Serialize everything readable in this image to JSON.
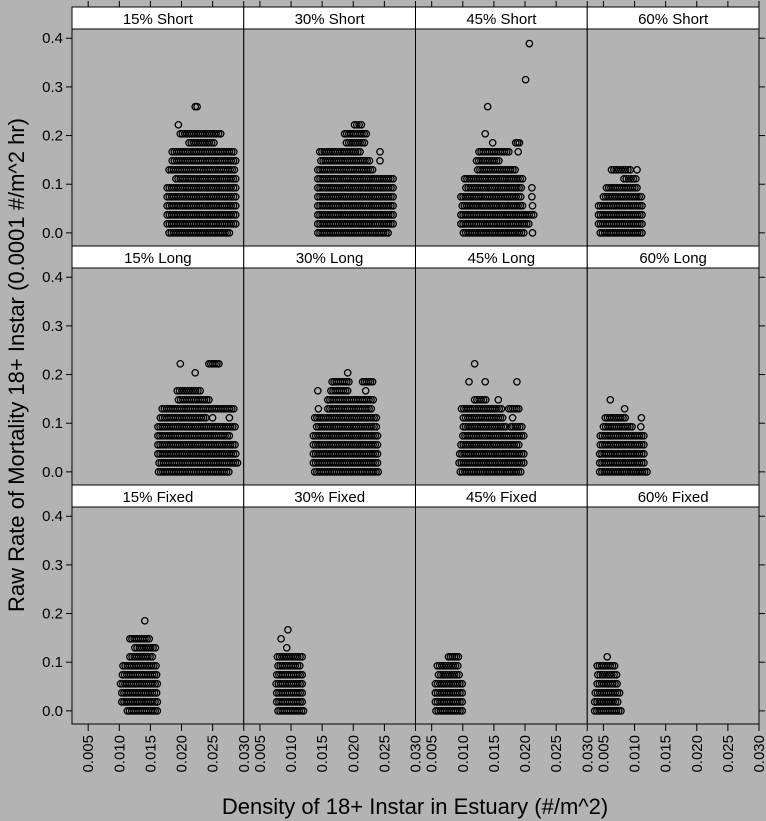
{
  "chart_data": {
    "type": "scatter",
    "layout": "lattice 4 columns x 3 rows",
    "xlabel": "Density of 18+ Instar in Estuary (#/m^2)",
    "ylabel": "Raw Rate of Mortality 18+ Instar (0.0001 #/m^2 hr)",
    "xlim": [
      0.0024,
      0.03
    ],
    "ylim": [
      -0.027,
      0.419
    ],
    "xticks": [
      "0.005",
      "0.010",
      "0.015",
      "0.020",
      "0.025",
      "0.030"
    ],
    "xtick_values": [
      0.005,
      0.01,
      0.015,
      0.02,
      0.025,
      0.03
    ],
    "yticks": [
      "0.0",
      "0.1",
      "0.2",
      "0.3",
      "0.4"
    ],
    "ytick_values": [
      0,
      0.1,
      0.2,
      0.3,
      0.4
    ],
    "grid": false,
    "background_color": "#b3b3b3",
    "strip_color": "#ffffff",
    "marker": "open circle",
    "y_step": 0.01852,
    "point_note": "each segment [y, x_min, x_max] is a run of overlapping points at that y",
    "panels": [
      {
        "label": "15% Short",
        "segments": [
          [
            0,
            0.018,
            0.0277
          ],
          [
            0.0185,
            0.0177,
            0.0287
          ],
          [
            0.037,
            0.0177,
            0.0287
          ],
          [
            0.0556,
            0.0177,
            0.0287
          ],
          [
            0.0741,
            0.0177,
            0.0287
          ],
          [
            0.0926,
            0.0177,
            0.0287
          ],
          [
            0.1111,
            0.0191,
            0.0287
          ],
          [
            0.1296,
            0.018,
            0.0285
          ],
          [
            0.1481,
            0.0185,
            0.0287
          ],
          [
            0.1667,
            0.0185,
            0.0284
          ],
          [
            0.1852,
            0.0212,
            0.0252
          ],
          [
            0.2037,
            0.0198,
            0.0263
          ],
          [
            0.2222,
            0.0195,
            0.0195
          ],
          [
            0.2593,
            0.0222,
            0.0225
          ]
        ]
      },
      {
        "label": "30% Short",
        "segments": [
          [
            0,
            0.0143,
            0.0256
          ],
          [
            0.0185,
            0.0143,
            0.0264
          ],
          [
            0.037,
            0.0143,
            0.0264
          ],
          [
            0.0556,
            0.0143,
            0.0264
          ],
          [
            0.0741,
            0.0143,
            0.0264
          ],
          [
            0.0926,
            0.0143,
            0.0264
          ],
          [
            0.1111,
            0.0143,
            0.0264
          ],
          [
            0.1296,
            0.0143,
            0.0231
          ],
          [
            0.1481,
            0.0148,
            0.0226
          ],
          [
            0.1481,
            0.0243,
            0.0243
          ],
          [
            0.1667,
            0.0146,
            0.0211
          ],
          [
            0.1667,
            0.0243,
            0.0243
          ],
          [
            0.1852,
            0.0189,
            0.0218
          ],
          [
            0.2037,
            0.0186,
            0.0221
          ],
          [
            0.2222,
            0.0202,
            0.0213
          ]
        ]
      },
      {
        "label": "45% Short",
        "segments": [
          [
            0,
            0.0101,
            0.0198
          ],
          [
            0,
            0.0212,
            0.0212
          ],
          [
            0.0185,
            0.0097,
            0.0206
          ],
          [
            0.037,
            0.0097,
            0.0214
          ],
          [
            0.0556,
            0.0099,
            0.0196
          ],
          [
            0.0556,
            0.0212,
            0.0212
          ],
          [
            0.0741,
            0.0097,
            0.0193
          ],
          [
            0.0741,
            0.0211,
            0.0211
          ],
          [
            0.0926,
            0.0105,
            0.0194
          ],
          [
            0.0926,
            0.0211,
            0.0211
          ],
          [
            0.1111,
            0.0103,
            0.0196
          ],
          [
            0.1296,
            0.0124,
            0.0184
          ],
          [
            0.1481,
            0.0122,
            0.0158
          ],
          [
            0.1667,
            0.0126,
            0.0174
          ],
          [
            0.1667,
            0.0189,
            0.0189
          ],
          [
            0.1852,
            0.0148,
            0.0148
          ],
          [
            0.1852,
            0.0185,
            0.0191
          ],
          [
            0.2037,
            0.0136,
            0.0136
          ],
          [
            0.2593,
            0.014,
            0.014
          ],
          [
            0.3148,
            0.0201,
            0.0201
          ],
          [
            0.3889,
            0.0207,
            0.0207
          ]
        ]
      },
      {
        "label": "60% Short",
        "segments": [
          [
            0,
            0.0045,
            0.0112
          ],
          [
            0.0185,
            0.0042,
            0.0112
          ],
          [
            0.037,
            0.0042,
            0.0112
          ],
          [
            0.0556,
            0.0042,
            0.0112
          ],
          [
            0.0741,
            0.005,
            0.0111
          ],
          [
            0.0926,
            0.0055,
            0.0104
          ],
          [
            0.1111,
            0.0083,
            0.0102
          ],
          [
            0.1296,
            0.0063,
            0.0093
          ],
          [
            0.1296,
            0.0104,
            0.0104
          ]
        ]
      },
      {
        "label": "15% Long",
        "segments": [
          [
            0,
            0.0163,
            0.0276
          ],
          [
            0.0185,
            0.0164,
            0.029
          ],
          [
            0.037,
            0.0162,
            0.0287
          ],
          [
            0.0556,
            0.0162,
            0.0286
          ],
          [
            0.0741,
            0.0162,
            0.0277
          ],
          [
            0.0926,
            0.0162,
            0.0286
          ],
          [
            0.1111,
            0.0166,
            0.0239
          ],
          [
            0.1111,
            0.025,
            0.025
          ],
          [
            0.1111,
            0.0277,
            0.0277
          ],
          [
            0.1296,
            0.0169,
            0.0284
          ],
          [
            0.1481,
            0.0195,
            0.0244
          ],
          [
            0.1667,
            0.0193,
            0.023
          ],
          [
            0.2037,
            0.0222,
            0.0222
          ],
          [
            0.2222,
            0.0198,
            0.0198
          ],
          [
            0.2222,
            0.0244,
            0.026
          ]
        ]
      },
      {
        "label": "30% Long",
        "segments": [
          [
            0,
            0.0138,
            0.024
          ],
          [
            0.0185,
            0.0136,
            0.0239
          ],
          [
            0.037,
            0.0136,
            0.0239
          ],
          [
            0.0556,
            0.0136,
            0.0239
          ],
          [
            0.0741,
            0.0136,
            0.0239
          ],
          [
            0.0926,
            0.0141,
            0.0237
          ],
          [
            0.1111,
            0.0138,
            0.0237
          ],
          [
            0.1296,
            0.0144,
            0.0144
          ],
          [
            0.1296,
            0.0159,
            0.0229
          ],
          [
            0.1481,
            0.0159,
            0.0232
          ],
          [
            0.1667,
            0.0143,
            0.0143
          ],
          [
            0.1667,
            0.0164,
            0.0191
          ],
          [
            0.1667,
            0.022,
            0.022
          ],
          [
            0.1852,
            0.0166,
            0.0193
          ],
          [
            0.1852,
            0.0215,
            0.0231
          ],
          [
            0.2037,
            0.0191,
            0.0191
          ]
        ]
      },
      {
        "label": "45% Long",
        "segments": [
          [
            0,
            0.0096,
            0.0193
          ],
          [
            0.0185,
            0.0094,
            0.0198
          ],
          [
            0.037,
            0.0095,
            0.0198
          ],
          [
            0.0556,
            0.0097,
            0.019
          ],
          [
            0.0741,
            0.01,
            0.0198
          ],
          [
            0.0926,
            0.0101,
            0.0169
          ],
          [
            0.0926,
            0.0177,
            0.0195
          ],
          [
            0.1111,
            0.0101,
            0.0164
          ],
          [
            0.1111,
            0.018,
            0.018
          ],
          [
            0.1296,
            0.0098,
            0.0162
          ],
          [
            0.1296,
            0.0174,
            0.019
          ],
          [
            0.1481,
            0.0119,
            0.0137
          ],
          [
            0.1481,
            0.0157,
            0.0157
          ],
          [
            0.1852,
            0.011,
            0.011
          ],
          [
            0.1852,
            0.0136,
            0.0136
          ],
          [
            0.1852,
            0.0187,
            0.0187
          ],
          [
            0.2222,
            0.0119,
            0.0119
          ]
        ]
      },
      {
        "label": "60% Long",
        "segments": [
          [
            0,
            0.0044,
            0.012
          ],
          [
            0.0185,
            0.0044,
            0.0115
          ],
          [
            0.037,
            0.0044,
            0.0115
          ],
          [
            0.0556,
            0.0045,
            0.0115
          ],
          [
            0.0741,
            0.0045,
            0.0115
          ],
          [
            0.0926,
            0.005,
            0.0096
          ],
          [
            0.0926,
            0.011,
            0.011
          ],
          [
            0.1111,
            0.0053,
            0.0085
          ],
          [
            0.1111,
            0.0111,
            0.0111
          ],
          [
            0.1296,
            0.0084,
            0.0084
          ],
          [
            0.1481,
            0.0061,
            0.0061
          ]
        ]
      },
      {
        "label": "15% Fixed",
        "segments": [
          [
            0,
            0.0113,
            0.0161
          ],
          [
            0.0185,
            0.0104,
            0.0161
          ],
          [
            0.037,
            0.0104,
            0.016
          ],
          [
            0.0556,
            0.0102,
            0.0161
          ],
          [
            0.0741,
            0.0105,
            0.016
          ],
          [
            0.0926,
            0.0106,
            0.0159
          ],
          [
            0.1111,
            0.0117,
            0.0153
          ],
          [
            0.1296,
            0.0125,
            0.0158
          ],
          [
            0.1481,
            0.0117,
            0.0148
          ],
          [
            0.1852,
            0.0141,
            0.0141
          ]
        ]
      },
      {
        "label": "30% Fixed",
        "segments": [
          [
            0,
            0.0079,
            0.012
          ],
          [
            0.0185,
            0.0077,
            0.0118
          ],
          [
            0.037,
            0.0077,
            0.0118
          ],
          [
            0.0556,
            0.0076,
            0.0118
          ],
          [
            0.0741,
            0.0077,
            0.0118
          ],
          [
            0.0926,
            0.0079,
            0.0114
          ],
          [
            0.1111,
            0.0078,
            0.0118
          ],
          [
            0.1296,
            0.0093,
            0.0093
          ],
          [
            0.1481,
            0.0084,
            0.0084
          ],
          [
            0.1667,
            0.0095,
            0.0095
          ]
        ]
      },
      {
        "label": "45% Fixed",
        "segments": [
          [
            0,
            0.0057,
            0.0099
          ],
          [
            0.0185,
            0.0056,
            0.0099
          ],
          [
            0.037,
            0.0056,
            0.0099
          ],
          [
            0.0556,
            0.0056,
            0.0099
          ],
          [
            0.0741,
            0.0061,
            0.0094
          ],
          [
            0.0926,
            0.0059,
            0.0092
          ],
          [
            0.1111,
            0.0077,
            0.0093
          ]
        ]
      },
      {
        "label": "60% Fixed",
        "segments": [
          [
            0,
            0.0036,
            0.0078
          ],
          [
            0.0185,
            0.0036,
            0.0073
          ],
          [
            0.037,
            0.0037,
            0.0076
          ],
          [
            0.0556,
            0.004,
            0.0072
          ],
          [
            0.0741,
            0.0041,
            0.0071
          ],
          [
            0.0926,
            0.004,
            0.0068
          ],
          [
            0.1111,
            0.0056,
            0.0056
          ]
        ]
      }
    ]
  }
}
